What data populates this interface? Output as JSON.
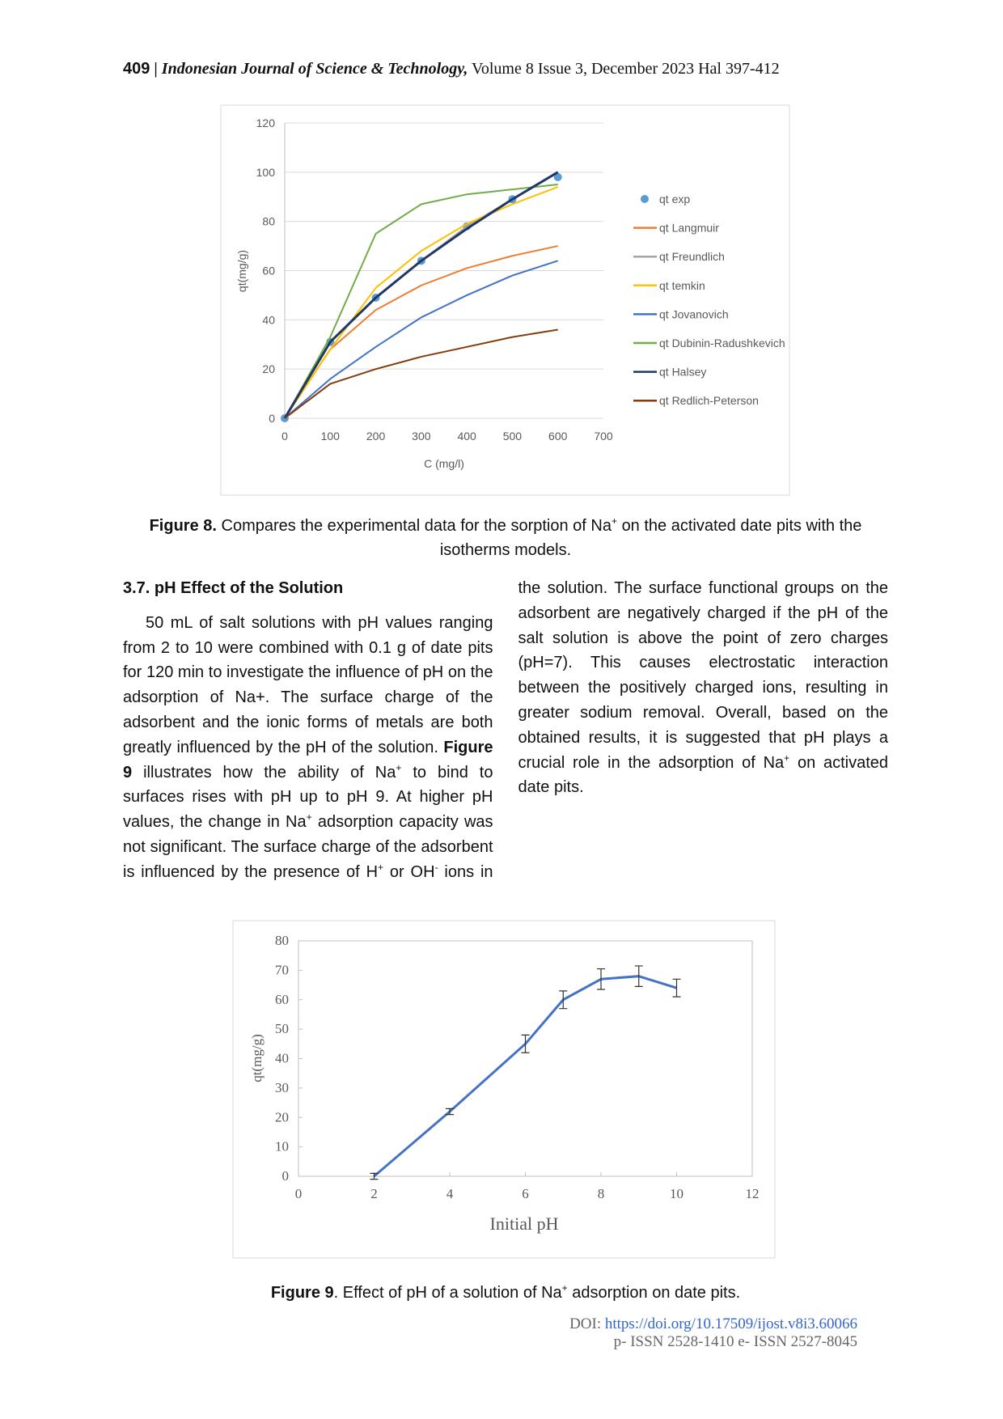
{
  "header": {
    "page": "409",
    "separator": "|",
    "journal": "Indonesian Journal of Science & Technology,",
    "issue": "Volume 8 Issue 3, December 2023 Hal 397-412"
  },
  "chart_data": [
    {
      "type": "line",
      "ylabel": "qt(mg/g)",
      "xlabel": "C (mg/l)",
      "x": [
        0,
        100,
        200,
        300,
        400,
        500,
        600
      ],
      "xlim": [
        0,
        700
      ],
      "xticks": [
        0,
        100,
        200,
        300,
        400,
        500,
        600,
        700
      ],
      "ylim": [
        0,
        120
      ],
      "yticks": [
        0,
        20,
        40,
        60,
        80,
        100,
        120
      ],
      "grid": true,
      "legend": "right",
      "series": [
        {
          "name": "qt exp",
          "color": "#5b9bd5",
          "mode": "markers",
          "values": [
            0,
            31,
            49,
            64,
            78,
            89,
            98
          ]
        },
        {
          "name": "qt Langmuir",
          "color": "#ed7d31",
          "values": [
            0,
            28,
            44,
            54,
            61,
            66,
            70
          ]
        },
        {
          "name": "qt Freundlich",
          "color": "#a5a5a5",
          "values": [
            0,
            31,
            49,
            64,
            78,
            89,
            100
          ]
        },
        {
          "name": "qt temkin",
          "color": "#ffc000",
          "values": [
            0,
            28,
            53,
            68,
            79,
            87,
            94
          ]
        },
        {
          "name": "qt Jovanovich",
          "color": "#4472c4",
          "values": [
            0,
            16,
            29,
            41,
            50,
            58,
            64
          ]
        },
        {
          "name": "qt Dubinin-Radushkevich",
          "color": "#70ad47",
          "values": [
            0,
            33,
            75,
            87,
            91,
            93,
            95
          ]
        },
        {
          "name": "qt Halsey",
          "color": "#1f3864",
          "values": [
            0,
            31,
            49,
            64,
            77,
            89,
            100
          ]
        },
        {
          "name": "qt Redlich-Peterson",
          "color": "#843c0c",
          "values": [
            0,
            14,
            20,
            25,
            29,
            33,
            36
          ]
        }
      ]
    },
    {
      "type": "line",
      "ylabel": "qt(mg/g)",
      "xlabel": "Initial pH",
      "x": [
        2,
        4,
        6,
        7,
        8,
        9,
        10
      ],
      "values": [
        0,
        22,
        45,
        60,
        67,
        68,
        64
      ],
      "errors": [
        1,
        1,
        3,
        3,
        3.5,
        3.5,
        3
      ],
      "color": "#4472c4",
      "xlim": [
        0,
        12
      ],
      "xticks": [
        0,
        2,
        4,
        6,
        8,
        10,
        12
      ],
      "ylim": [
        0,
        80
      ],
      "yticks": [
        0,
        10,
        20,
        30,
        40,
        50,
        60,
        70,
        80
      ],
      "grid": false
    }
  ],
  "figure8_caption": [
    "Figure 8.",
    "Compares the experimental data for the sorption of Na",
    "+",
    "on the activated date pits with the isotherms models."
  ],
  "section_heading": "3.7. pH Effect of the Solution",
  "paragraph": [
    "50 mL of salt solutions with pH values ranging from 2 to 10 were combined with 0.1 g of date pits for 120 min to investigate the influence of pH on the adsorption of Na+. The surface charge of the adsorbent and the ionic forms of metals are both greatly influenced by the pH of the solution.",
    "Figure 9",
    "illustrates how the ability of Na",
    "+",
    "to bind to surfaces rises with pH up to pH 9. At higher pH values, the change in Na",
    "+",
    "adsorption capacity was not significant. The surface charge of the adsorbent is influenced by the presence of H",
    "+",
    "or OH",
    "-",
    "ions in the solution. The surface functional groups on the adsorbent are negatively charged if the pH of the salt solution is above the point of zero charges (pH=7). This causes electrostatic interaction between the positively charged ions, resulting in greater sodium removal. Overall, based on the obtained results, it is suggested that pH plays a crucial role in the adsorption of Na",
    "+",
    "on activated date pits."
  ],
  "figure9_caption": [
    "Figure 9",
    ". Effect of pH of a solution of Na",
    "+",
    "adsorption on date pits."
  ],
  "footer": {
    "doi_label": "DOI:",
    "doi_url": "https://doi.org/10.17509/ijost.v8i3.60066",
    "issn": "p- ISSN 2528-1410 e- ISSN 2527-8045"
  }
}
